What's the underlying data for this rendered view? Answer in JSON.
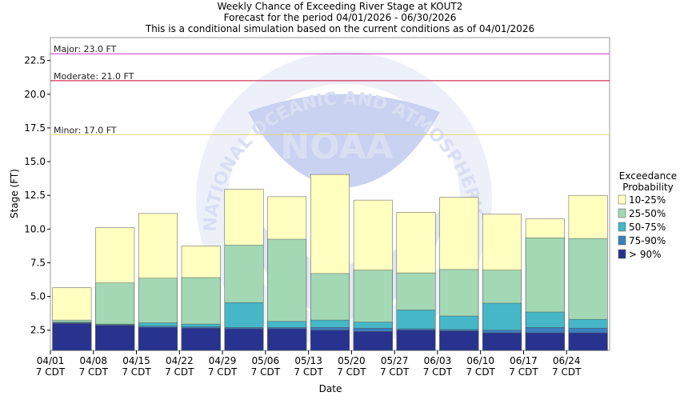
{
  "chart_data": {
    "type": "bar",
    "title_lines": [
      "Weekly Chance of Exceeding River Stage at KOUT2",
      "Forecast for the period 04/01/2026 - 06/30/2026",
      "This is a conditional simulation based on the current conditions as of 04/01/2026"
    ],
    "xlabel": "Date",
    "ylabel": "Stage (FT)",
    "ylim": [
      1.0,
      24.2
    ],
    "yticks": [
      2.5,
      5.0,
      7.5,
      10.0,
      12.5,
      15.0,
      17.5,
      20.0,
      22.5
    ],
    "ytick_labels": [
      "2.5",
      "5.0",
      "7.5",
      "10.0",
      "12.5",
      "15.0",
      "17.5",
      "20.0",
      "22.5"
    ],
    "grid": false,
    "categories": [
      "04/01",
      "04/08",
      "04/15",
      "04/22",
      "04/29",
      "05/06",
      "05/13",
      "05/20",
      "05/27",
      "06/03",
      "06/10",
      "06/17",
      "06/24"
    ],
    "xtick_date": [
      "04/01",
      "04/08",
      "04/15",
      "04/22",
      "04/29",
      "05/06",
      "05/13",
      "05/20",
      "05/27",
      "06/03",
      "06/10",
      "06/17",
      "06/24"
    ],
    "xtick_time": [
      "7 CDT",
      "7 CDT",
      "7 CDT",
      "7 CDT",
      "7 CDT",
      "7 CDT",
      "7 CDT",
      "7 CDT",
      "7 CDT",
      "7 CDT",
      "7 CDT",
      "7 CDT",
      "7 CDT"
    ],
    "thresholds": [
      {
        "label": "Major: 23.0 FT",
        "value": 23.0,
        "color": "#cc33cc"
      },
      {
        "label": "Moderate: 21.0 FT",
        "value": 21.0,
        "color": "#cc0033"
      },
      {
        "label": "Minor: 17.0 FT",
        "value": 17.0,
        "color": "#e8d47a"
      }
    ],
    "legend": {
      "title_lines": [
        "Exceedance",
        "Probability"
      ],
      "placement": "right"
    },
    "series": [
      {
        "name": "> 90%",
        "color": "#28338f",
        "values": [
          3.0,
          2.85,
          2.7,
          2.65,
          2.6,
          2.6,
          2.5,
          2.4,
          2.5,
          2.45,
          2.3,
          2.3,
          2.3
        ]
      },
      {
        "name": "75-90%",
        "color": "#3a7fbe",
        "values": [
          3.05,
          2.9,
          2.8,
          2.75,
          2.7,
          2.7,
          2.7,
          2.65,
          2.6,
          2.55,
          2.5,
          2.7,
          2.65
        ]
      },
      {
        "name": "50-75%",
        "color": "#45b7c7",
        "values": [
          3.1,
          2.95,
          3.05,
          2.95,
          4.55,
          3.15,
          3.25,
          3.1,
          4.0,
          3.55,
          4.5,
          3.85,
          3.3
        ]
      },
      {
        "name": "25-50%",
        "color": "#a3d8b4",
        "values": [
          3.25,
          6.0,
          6.35,
          6.4,
          8.8,
          9.25,
          6.7,
          6.95,
          6.75,
          7.0,
          6.95,
          9.35,
          9.3
        ]
      },
      {
        "name": "10-25%",
        "color": "#ffffc0",
        "values": [
          5.65,
          10.1,
          11.15,
          8.75,
          12.95,
          12.4,
          14.05,
          12.15,
          11.25,
          12.35,
          11.1,
          10.75,
          12.5
        ]
      }
    ],
    "legend_order": [
      "10-25%",
      "25-50%",
      "50-75%",
      "75-90%",
      "> 90%"
    ],
    "watermark": {
      "center_text": "NOAA",
      "ring_text": "NATIONAL OCEANIC AND ATMOSPHERIC ADMINISTRATION",
      "colors": [
        "#c9d2f0",
        "#e2e6f6"
      ]
    }
  }
}
